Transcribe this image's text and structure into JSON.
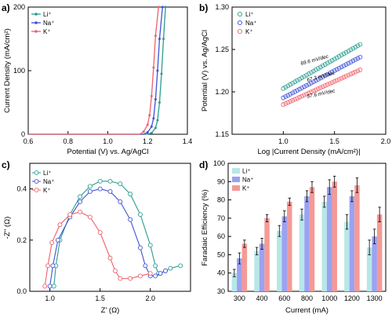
{
  "colors": {
    "li": "#2a9d8f",
    "na": "#3f51d6",
    "k": "#f0606a",
    "li_bar": "#b7e7e8",
    "na_bar": "#9aa2f2",
    "k_bar": "#f49a96"
  },
  "chart_data": [
    {
      "panel": "a)",
      "type": "line",
      "xlabel": "Potential (V) vs. Ag/AgCl",
      "ylabel": "Current Density (mA/cm²)",
      "xlim": [
        0.6,
        1.4
      ],
      "ylim": [
        0,
        200
      ],
      "xticks": [
        "0.6",
        "0.8",
        "1.0",
        "1.2",
        "1.4"
      ],
      "yticks": [
        "0",
        "100",
        "200"
      ],
      "legend": "top-left",
      "series": [
        {
          "name": "Li⁺",
          "color": "#2a9d8f",
          "x": [
            0.6,
            1.2,
            1.22,
            1.24,
            1.25,
            1.26,
            1.27,
            1.28,
            1.29
          ],
          "y": [
            0,
            0,
            2,
            10,
            22,
            50,
            95,
            150,
            200
          ]
        },
        {
          "name": "Na⁺",
          "color": "#3f51d6",
          "x": [
            0.6,
            1.18,
            1.2,
            1.22,
            1.23,
            1.24,
            1.25,
            1.26,
            1.275
          ],
          "y": [
            0,
            0,
            3,
            12,
            25,
            55,
            100,
            150,
            200
          ]
        },
        {
          "name": "K⁺",
          "color": "#f0606a",
          "x": [
            0.6,
            1.16,
            1.18,
            1.2,
            1.21,
            1.22,
            1.23,
            1.24,
            1.255
          ],
          "y": [
            0,
            0,
            4,
            15,
            30,
            60,
            105,
            155,
            200
          ]
        }
      ]
    },
    {
      "panel": "b)",
      "type": "scatter",
      "xlabel": "Log |Current Density (mA/cm²)|",
      "ylabel": "Potential (V) vs. Ag/AgCl",
      "xlim": [
        0.5,
        2.0
      ],
      "ylim": [
        1.15,
        1.3
      ],
      "xticks": [
        "1.0",
        "1.5",
        "2.0"
      ],
      "yticks": [
        "1.15",
        "1.20",
        "1.25",
        "1.30"
      ],
      "legend": "top-left",
      "series": [
        {
          "name": "Li⁺",
          "color": "#2a9d8f",
          "x_range": [
            1.0,
            1.75
          ],
          "y_range": [
            1.204,
            1.256
          ],
          "label": "69.6 mV/dec"
        },
        {
          "name": "Na⁺",
          "color": "#3f51d6",
          "x_range": [
            1.0,
            1.75
          ],
          "y_range": [
            1.193,
            1.241
          ],
          "label": "67.3 mV/dec"
        },
        {
          "name": "K⁺",
          "color": "#f0606a",
          "x_range": [
            1.0,
            1.75
          ],
          "y_range": [
            1.185,
            1.226
          ],
          "label": "57.6 mV/dec"
        }
      ]
    },
    {
      "panel": "c)",
      "type": "scatter",
      "xlabel": "Z' (Ω)",
      "ylabel": "-Z'' (Ω)",
      "xlim": [
        0.8,
        2.4
      ],
      "ylim": [
        0.0,
        0.5
      ],
      "xticks": [
        "1.0",
        "1.5",
        "2.0"
      ],
      "yticks": [
        "0.0",
        "0.2",
        "0.4"
      ],
      "legend": "top-left",
      "series": [
        {
          "name": "Li⁺",
          "color": "#2a9d8f",
          "x": [
            1.04,
            1.06,
            1.1,
            1.2,
            1.3,
            1.4,
            1.5,
            1.6,
            1.7,
            1.8,
            1.9,
            2.0,
            2.05,
            2.08,
            2.1,
            2.15,
            2.2,
            2.3
          ],
          "y": [
            0.02,
            0.1,
            0.2,
            0.3,
            0.37,
            0.41,
            0.43,
            0.43,
            0.42,
            0.38,
            0.3,
            0.18,
            0.1,
            0.07,
            0.07,
            0.08,
            0.09,
            0.1
          ]
        },
        {
          "name": "Na⁺",
          "color": "#3f51d6",
          "x": [
            1.0,
            1.03,
            1.08,
            1.2,
            1.3,
            1.4,
            1.5,
            1.6,
            1.7,
            1.8,
            1.9,
            1.95,
            2.0,
            2.05,
            2.1,
            2.15
          ],
          "y": [
            0.02,
            0.1,
            0.2,
            0.29,
            0.35,
            0.39,
            0.4,
            0.39,
            0.35,
            0.28,
            0.17,
            0.1,
            0.06,
            0.06,
            0.07,
            0.08
          ]
        },
        {
          "name": "K⁺",
          "color": "#f0606a",
          "x": [
            0.95,
            0.98,
            1.02,
            1.1,
            1.2,
            1.3,
            1.4,
            1.5,
            1.6,
            1.65,
            1.7,
            1.8,
            1.9,
            2.0
          ],
          "y": [
            0.02,
            0.1,
            0.19,
            0.26,
            0.3,
            0.31,
            0.29,
            0.23,
            0.13,
            0.08,
            0.05,
            0.05,
            0.06,
            0.07
          ]
        }
      ]
    },
    {
      "panel": "d)",
      "type": "bar",
      "xlabel": "Current (mA)",
      "ylabel": "Faradaic Efficiency (%)",
      "ylim": [
        30,
        100
      ],
      "yticks": [
        "30",
        "40",
        "50",
        "60",
        "70",
        "80",
        "90",
        "100"
      ],
      "categories": [
        "300",
        "400",
        "600",
        "800",
        "1000",
        "1200",
        "1300"
      ],
      "legend": "top-left",
      "series": [
        {
          "name": "Li⁺",
          "color": "#b7e7e8",
          "values": [
            40,
            52,
            63,
            72,
            79,
            68,
            54
          ],
          "errors": [
            2,
            2,
            3,
            3,
            3,
            4,
            4
          ]
        },
        {
          "name": "Na⁺",
          "color": "#9aa2f2",
          "values": [
            48,
            56,
            71,
            82,
            87,
            82,
            60
          ],
          "errors": [
            3,
            3,
            3,
            3,
            4,
            3,
            4
          ]
        },
        {
          "name": "K⁺",
          "color": "#f49a96",
          "values": [
            56,
            70,
            79,
            87,
            90,
            88,
            72
          ],
          "errors": [
            2,
            2,
            2,
            3,
            3,
            4,
            4
          ]
        }
      ]
    }
  ]
}
